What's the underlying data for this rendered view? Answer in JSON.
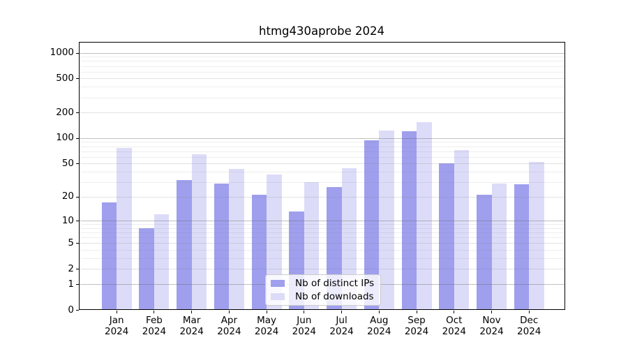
{
  "colors": {
    "background": "#ffffff",
    "axis": "#000000",
    "text": "#000000",
    "major_gridline": "#c2c2c2",
    "minor_gridline": "#ededed"
  },
  "chart_data": {
    "type": "bar",
    "title": "htmg430aprobe 2024",
    "xlabel": "",
    "ylabel": "",
    "categories": [
      "Jan 2024",
      "Feb 2024",
      "Mar 2024",
      "Apr 2024",
      "May 2024",
      "Jun 2024",
      "Jul 2024",
      "Aug 2024",
      "Sep 2024",
      "Oct 2024",
      "Nov 2024",
      "Dec 2024"
    ],
    "series": [
      {
        "name": "Nb of distinct IPs",
        "color": "#9f9fee",
        "values": [
          17,
          8,
          32,
          29,
          21,
          13,
          26,
          95,
          120,
          50,
          21,
          28
        ]
      },
      {
        "name": "Nb of downloads",
        "color": "#dcdcf8",
        "values": [
          77,
          12,
          64,
          43,
          37,
          30,
          44,
          122,
          155,
          72,
          29,
          52
        ]
      }
    ],
    "yscale": "log1p",
    "yticks": [
      0,
      1,
      2,
      5,
      10,
      20,
      50,
      100,
      200,
      500,
      1000
    ],
    "decade_gridline_values": [
      1,
      10,
      100,
      1000
    ],
    "minor_gridline_values": [
      3,
      4,
      6,
      7,
      8,
      9,
      30,
      40,
      60,
      70,
      80,
      90,
      300,
      400,
      600,
      700,
      800,
      900
    ],
    "ylim": [
      0,
      1300
    ],
    "grid": true,
    "legend_position": "lower center"
  }
}
